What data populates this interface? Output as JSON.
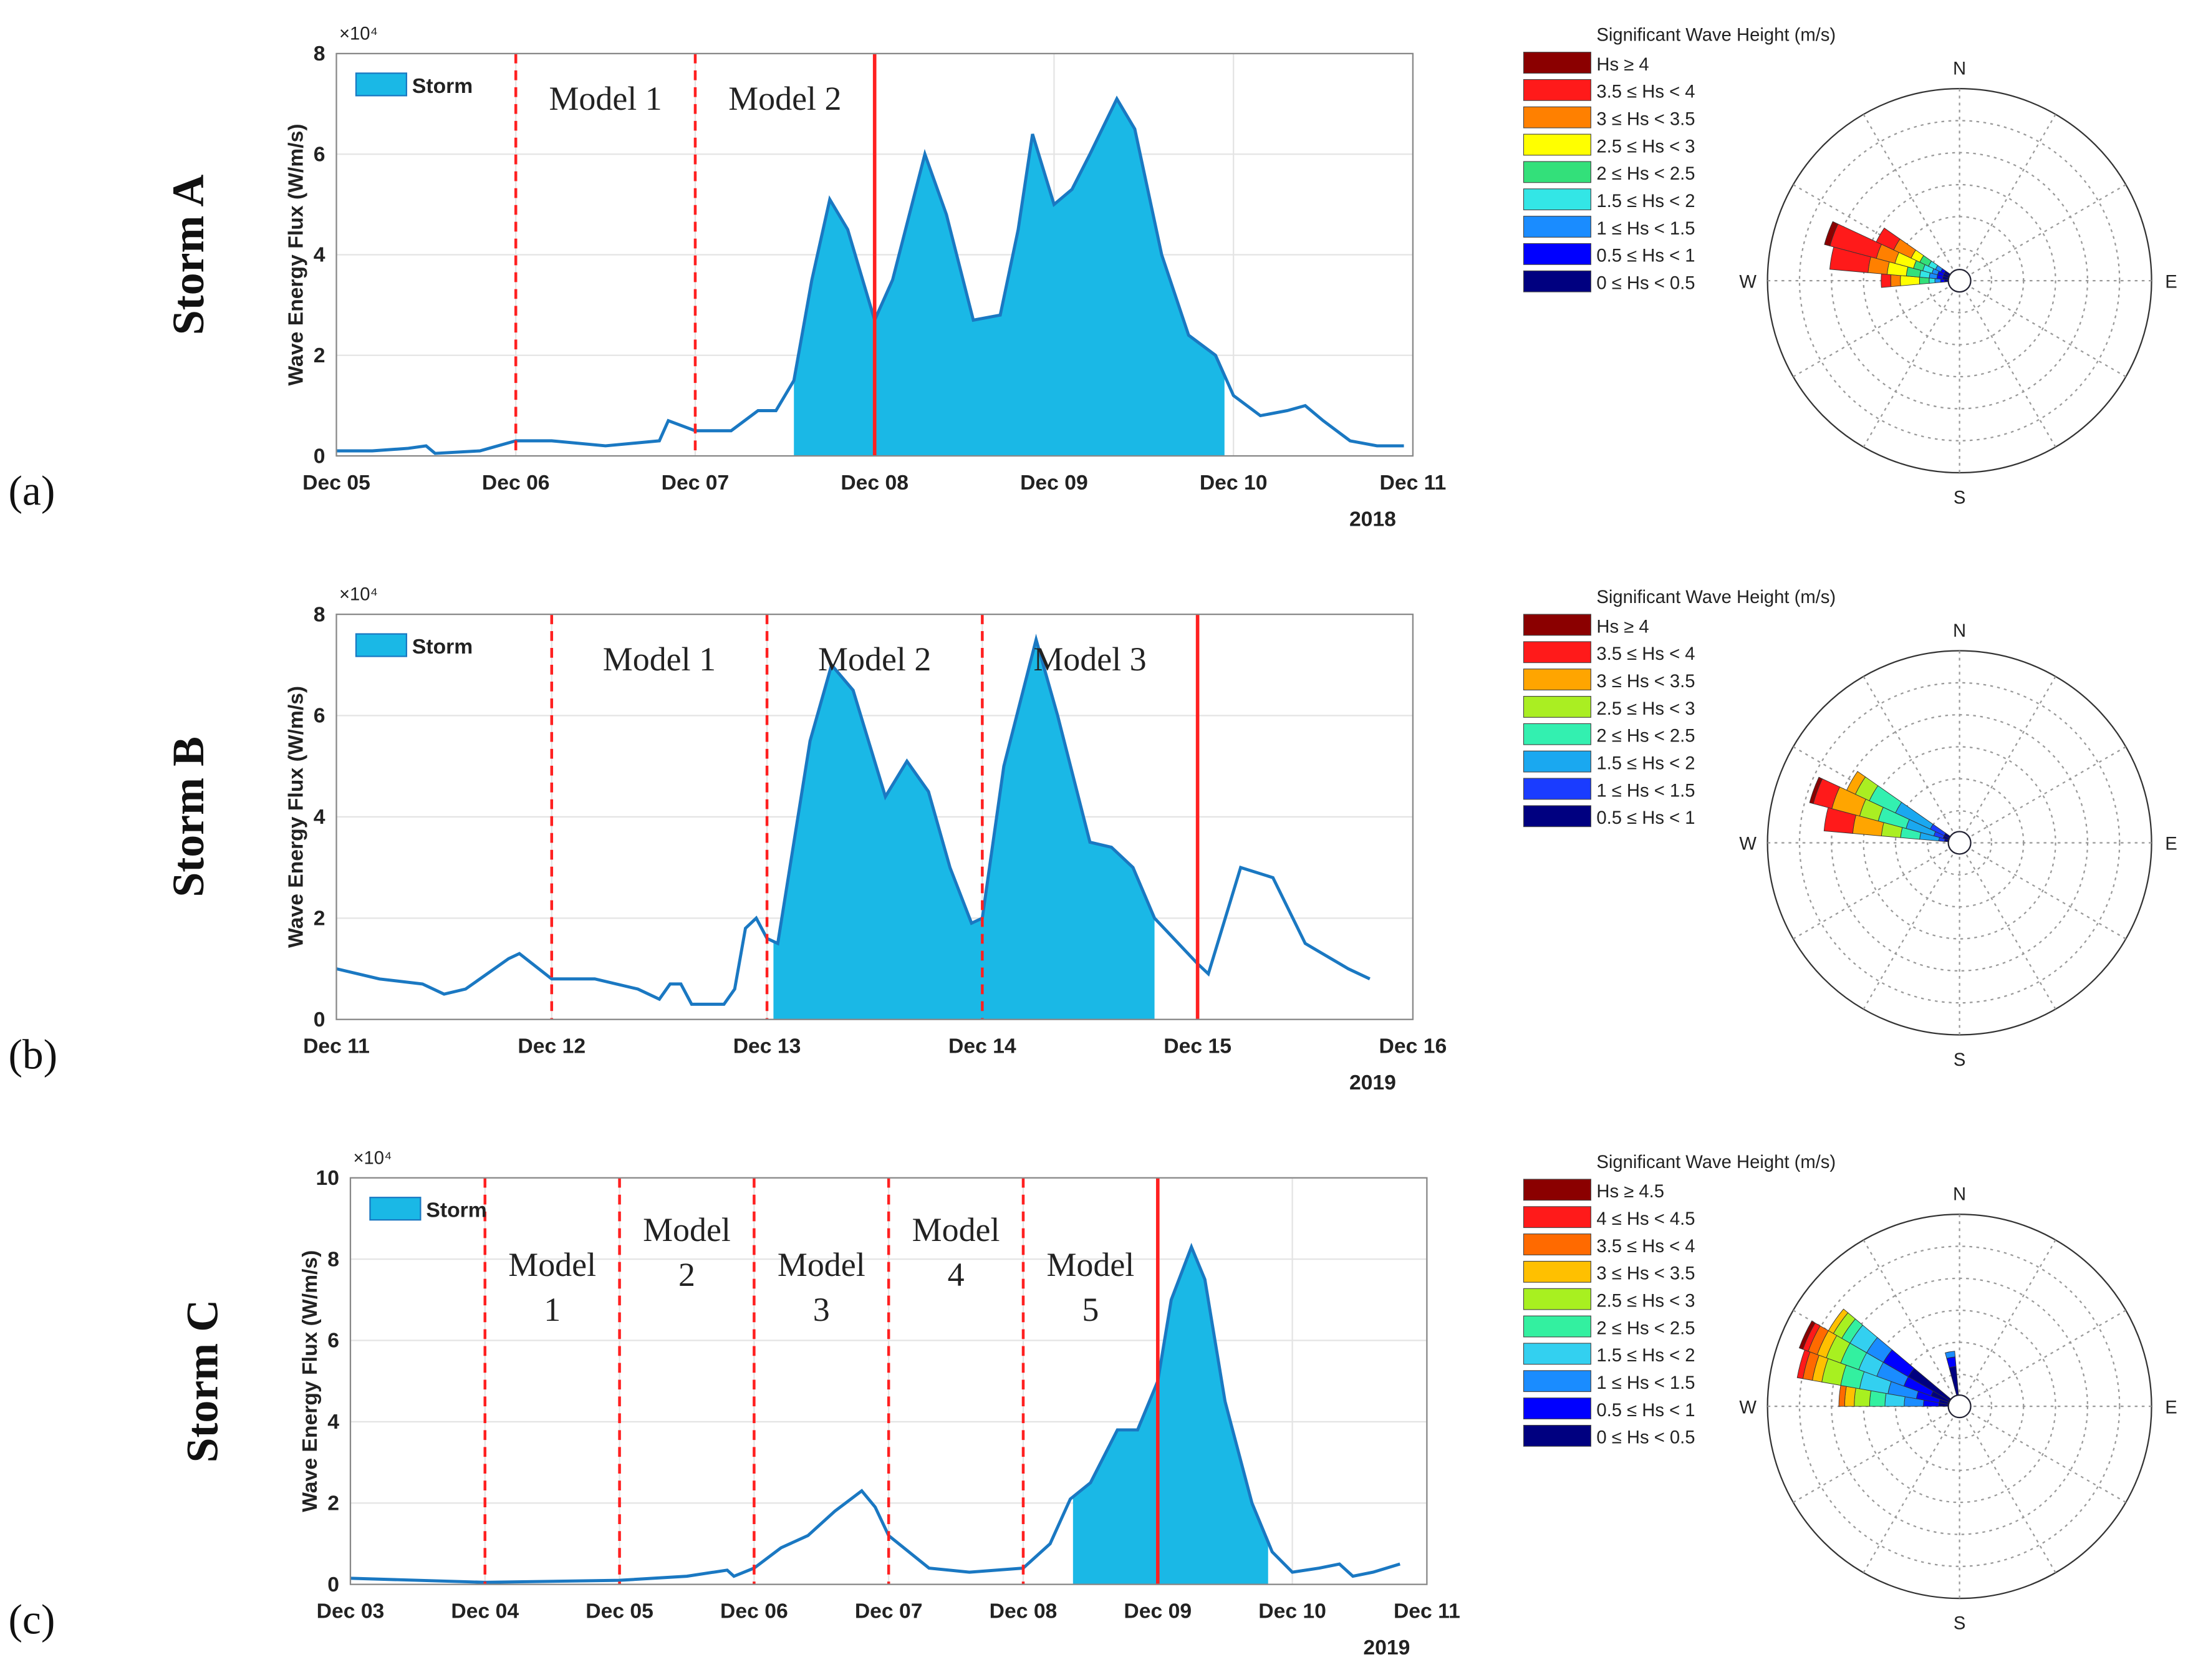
{
  "chart_data": [
    {
      "type": "line",
      "row_label": "Storm A",
      "panel_label": "(a)",
      "ylabel": "Wave Energy Flux (W/m/s)",
      "y_offset_label": "×10⁴",
      "year_label": "2018",
      "xlim": [
        5,
        11
      ],
      "xticks": [
        {
          "value": 5,
          "label": "Dec 05"
        },
        {
          "value": 6,
          "label": "Dec 06"
        },
        {
          "value": 7,
          "label": "Dec 07"
        },
        {
          "value": 8,
          "label": "Dec 08"
        },
        {
          "value": 9,
          "label": "Dec 09"
        },
        {
          "value": 10,
          "label": "Dec 10"
        },
        {
          "value": 11,
          "label": "Dec 11"
        }
      ],
      "ylim": [
        0,
        8
      ],
      "yticks": [
        0,
        2,
        4,
        6,
        8
      ],
      "grid": true,
      "x": [
        5.0,
        5.2,
        5.4,
        5.5,
        5.55,
        5.8,
        6.0,
        6.2,
        6.5,
        6.8,
        6.85,
        7.0,
        7.2,
        7.35,
        7.45,
        7.55,
        7.65,
        7.75,
        7.85,
        8.0,
        8.1,
        8.28,
        8.4,
        8.55,
        8.7,
        8.8,
        8.88,
        9.0,
        9.1,
        9.2,
        9.35,
        9.45,
        9.6,
        9.75,
        9.9,
        10.0,
        10.15,
        10.3,
        10.4,
        10.5,
        10.65,
        10.8,
        10.95
      ],
      "series": [
        {
          "name": "Storm",
          "color": "#1a78c2",
          "fill": "#1ab8e6",
          "values": [
            0.1,
            0.1,
            0.15,
            0.2,
            0.05,
            0.1,
            0.3,
            0.3,
            0.2,
            0.3,
            0.7,
            0.5,
            0.5,
            0.9,
            0.9,
            1.5,
            3.5,
            5.1,
            4.5,
            2.7,
            3.5,
            6.0,
            4.8,
            2.7,
            2.8,
            4.5,
            6.4,
            5.0,
            5.3,
            6.0,
            7.1,
            6.5,
            4.0,
            2.4,
            2.0,
            1.2,
            0.8,
            0.9,
            1.0,
            0.7,
            0.3,
            0.2,
            0.2
          ]
        }
      ],
      "storm_range": [
        7.55,
        9.95
      ],
      "vlines_dashed": [
        6,
        7
      ],
      "vline_solid": 8,
      "line_color": "#ff2020",
      "annotations": [
        [
          "Model 1"
        ],
        [
          "Model 2"
        ]
      ]
    },
    {
      "type": "rose",
      "title": "Significant Wave Height (m/s)",
      "direction_labels": [
        "N",
        "E",
        "S",
        "W"
      ],
      "rlim": [
        0,
        10
      ],
      "bin_width": 10,
      "directions": [
        270,
        280,
        290,
        300
      ],
      "series": [
        {
          "name": "Hs ≥ 4",
          "color": "#8b0000",
          "values": [
            0,
            0,
            0.3,
            0
          ]
        },
        {
          "name": "3.5 ≤ Hs < 4",
          "color": "#ff1a1a",
          "values": [
            0.5,
            2,
            2.5,
            1
          ]
        },
        {
          "name": "3 ≤ Hs < 3.5",
          "color": "#ff8000",
          "values": [
            0.5,
            1,
            1,
            1
          ]
        },
        {
          "name": "2.5 ≤ Hs < 3",
          "color": "#ffff00",
          "values": [
            1,
            1,
            1,
            0.5
          ]
        },
        {
          "name": "2 ≤ Hs < 2.5",
          "color": "#33e07a",
          "values": [
            0.5,
            0.7,
            0.5,
            0.5
          ]
        },
        {
          "name": "1.5 ≤ Hs < 2",
          "color": "#33e6e6",
          "values": [
            0.3,
            0.5,
            0.5,
            0.4
          ]
        },
        {
          "name": "1 ≤ Hs < 1.5",
          "color": "#1a8cff",
          "values": [
            0.3,
            0.4,
            0.3,
            0.3
          ]
        },
        {
          "name": "0.5 ≤ Hs < 1",
          "color": "#0000ff",
          "values": [
            0.2,
            0.3,
            0.3,
            0.2
          ]
        },
        {
          "name": "0 ≤ Hs < 0.5",
          "color": "#000080",
          "values": [
            0.2,
            0.3,
            0.3,
            0.3
          ]
        }
      ]
    },
    {
      "type": "line",
      "row_label": "Storm B",
      "panel_label": "(b)",
      "ylabel": "Wave Energy Flux (W/m/s)",
      "y_offset_label": "×10⁴",
      "year_label": "2019",
      "xlim": [
        11,
        16
      ],
      "xticks": [
        {
          "value": 11,
          "label": "Dec 11"
        },
        {
          "value": 12,
          "label": "Dec 12"
        },
        {
          "value": 13,
          "label": "Dec 13"
        },
        {
          "value": 14,
          "label": "Dec 14"
        },
        {
          "value": 15,
          "label": "Dec 15"
        },
        {
          "value": 16,
          "label": "Dec 16"
        }
      ],
      "ylim": [
        0,
        8
      ],
      "yticks": [
        0,
        2,
        4,
        6,
        8
      ],
      "grid": true,
      "x": [
        11.0,
        11.2,
        11.4,
        11.5,
        11.6,
        11.8,
        11.85,
        12.0,
        12.2,
        12.4,
        12.5,
        12.55,
        12.6,
        12.65,
        12.8,
        12.85,
        12.9,
        12.95,
        13.0,
        13.05,
        13.2,
        13.3,
        13.4,
        13.55,
        13.65,
        13.75,
        13.85,
        13.95,
        14.0,
        14.1,
        14.25,
        14.35,
        14.5,
        14.6,
        14.7,
        14.8,
        15.0,
        15.05,
        15.2,
        15.35,
        15.5,
        15.7,
        15.8
      ],
      "series": [
        {
          "name": "Storm",
          "color": "#1a78c2",
          "fill": "#1ab8e6",
          "values": [
            1.0,
            0.8,
            0.7,
            0.5,
            0.6,
            1.2,
            1.3,
            0.8,
            0.8,
            0.6,
            0.4,
            0.7,
            0.7,
            0.3,
            0.3,
            0.6,
            1.8,
            2.0,
            1.6,
            1.5,
            5.5,
            7.0,
            6.5,
            4.4,
            5.1,
            4.5,
            3.0,
            1.9,
            2.0,
            5.0,
            7.5,
            6.0,
            3.5,
            3.4,
            3.0,
            2.0,
            1.1,
            0.9,
            3.0,
            2.8,
            1.5,
            1.0,
            0.8
          ]
        }
      ],
      "storm_range": [
        13.03,
        14.8
      ],
      "vlines_dashed": [
        12,
        13,
        14
      ],
      "vline_solid": 15,
      "line_color": "#ff2020",
      "annotations": [
        [
          "Model 1"
        ],
        [
          "Model 2"
        ],
        [
          "Model 3"
        ]
      ]
    },
    {
      "type": "rose",
      "title": "Significant Wave Height (m/s)",
      "direction_labels": [
        "N",
        "E",
        "S",
        "W"
      ],
      "rlim": [
        0,
        10
      ],
      "bin_width": 10,
      "directions": [
        280,
        290,
        300
      ],
      "series": [
        {
          "name": "Hs ≥ 4",
          "color": "#8b0000",
          "values": [
            0,
            0.2,
            0
          ]
        },
        {
          "name": "3.5 ≤ Hs < 4",
          "color": "#ff1a1a",
          "values": [
            1.5,
            1,
            0
          ]
        },
        {
          "name": "3 ≤ Hs < 3.5",
          "color": "#ffa500",
          "values": [
            1.5,
            1.5,
            0.5
          ]
        },
        {
          "name": "2.5 ≤ Hs < 3",
          "color": "#aaee22",
          "values": [
            1,
            1,
            0.8
          ]
        },
        {
          "name": "2 ≤ Hs < 2.5",
          "color": "#33f0b0",
          "values": [
            1,
            1.5,
            1.5
          ]
        },
        {
          "name": "1.5 ≤ Hs < 2",
          "color": "#1aa8f0",
          "values": [
            1,
            1.5,
            2
          ]
        },
        {
          "name": "1 ≤ Hs < 1.5",
          "color": "#1a3cff",
          "values": [
            0.3,
            0.5,
            0.8
          ]
        },
        {
          "name": "0.5 ≤ Hs < 1",
          "color": "#000080",
          "values": [
            0.2,
            0.3,
            0.3
          ]
        }
      ]
    },
    {
      "type": "line",
      "row_label": "Storm C",
      "panel_label": "(c)",
      "ylabel": "Wave Energy Flux (W/m/s)",
      "y_offset_label": "×10⁴",
      "year_label": "2019",
      "xlim": [
        3,
        11
      ],
      "xticks": [
        {
          "value": 3,
          "label": "Dec 03"
        },
        {
          "value": 4,
          "label": "Dec 04"
        },
        {
          "value": 5,
          "label": "Dec 05"
        },
        {
          "value": 6,
          "label": "Dec 06"
        },
        {
          "value": 7,
          "label": "Dec 07"
        },
        {
          "value": 8,
          "label": "Dec 08"
        },
        {
          "value": 9,
          "label": "Dec 09"
        },
        {
          "value": 10,
          "label": "Dec 10"
        },
        {
          "value": 11,
          "label": "Dec 11"
        }
      ],
      "ylim": [
        0,
        10
      ],
      "yticks": [
        0,
        2,
        4,
        6,
        8,
        10
      ],
      "grid": true,
      "x": [
        3.0,
        4.0,
        5.0,
        5.5,
        5.8,
        5.85,
        6.0,
        6.2,
        6.4,
        6.6,
        6.8,
        6.9,
        7.0,
        7.3,
        7.6,
        8.0,
        8.2,
        8.35,
        8.5,
        8.7,
        8.85,
        9.0,
        9.1,
        9.25,
        9.35,
        9.5,
        9.7,
        9.85,
        10.0,
        10.2,
        10.35,
        10.45,
        10.6,
        10.8
      ],
      "series": [
        {
          "name": "Storm",
          "color": "#1a78c2",
          "fill": "#1ab8e6",
          "values": [
            0.15,
            0.05,
            0.1,
            0.2,
            0.35,
            0.2,
            0.4,
            0.9,
            1.2,
            1.8,
            2.3,
            1.9,
            1.2,
            0.4,
            0.3,
            0.4,
            1.0,
            2.1,
            2.5,
            3.8,
            3.8,
            5.0,
            7.0,
            8.3,
            7.5,
            4.5,
            2.0,
            0.8,
            0.3,
            0.4,
            0.5,
            0.2,
            0.3,
            0.5
          ]
        }
      ],
      "storm_range": [
        8.37,
        9.82
      ],
      "vlines_dashed": [
        4,
        5,
        6,
        7,
        8
      ],
      "vline_solid": 9,
      "line_color": "#ff2020",
      "annotations": [
        [
          "Model",
          "1"
        ],
        [
          "Model",
          "2"
        ],
        [
          "Model",
          "3"
        ],
        [
          "Model",
          "4"
        ],
        [
          "Model",
          "5"
        ]
      ]
    },
    {
      "type": "rose",
      "title": "Significant Wave Height (m/s)",
      "direction_labels": [
        "N",
        "E",
        "S",
        "W"
      ],
      "rlim": [
        0,
        10
      ],
      "bin_width": 10,
      "directions": [
        275,
        285,
        295,
        305,
        350
      ],
      "series": [
        {
          "name": "Hs ≥ 4.5",
          "color": "#8b0000",
          "values": [
            0,
            0,
            0.2,
            0,
            0
          ]
        },
        {
          "name": "4 ≤ Hs < 4.5",
          "color": "#ff1a1a",
          "values": [
            0,
            0.3,
            0.3,
            0,
            0
          ]
        },
        {
          "name": "3.5 ≤ Hs < 4",
          "color": "#ff6a00",
          "values": [
            0.3,
            0.5,
            0.5,
            0,
            0
          ]
        },
        {
          "name": "3 ≤ Hs < 3.5",
          "color": "#ffc000",
          "values": [
            0.5,
            0.5,
            0.5,
            0.3,
            0
          ]
        },
        {
          "name": "2.5 ≤ Hs < 3",
          "color": "#a8f020",
          "values": [
            0.8,
            1,
            0.8,
            0.5,
            0
          ]
        },
        {
          "name": "2 ≤ Hs < 2.5",
          "color": "#33f0a0",
          "values": [
            0.8,
            1,
            1,
            0.5,
            0
          ]
        },
        {
          "name": "1.5 ≤ Hs < 2",
          "color": "#33d0f0",
          "values": [
            1,
            1.5,
            1,
            1,
            0
          ]
        },
        {
          "name": "1 ≤ Hs < 1.5",
          "color": "#1a8cff",
          "values": [
            1,
            1.5,
            1.5,
            1,
            0.3
          ]
        },
        {
          "name": "0.5 ≤ Hs < 1",
          "color": "#0000ff",
          "values": [
            0.8,
            1.2,
            1.5,
            1.5,
            0.5
          ]
        },
        {
          "name": "0 ≤ Hs < 0.5",
          "color": "#000080",
          "values": [
            0.5,
            0.5,
            1,
            2.5,
            1.5
          ]
        }
      ]
    }
  ]
}
